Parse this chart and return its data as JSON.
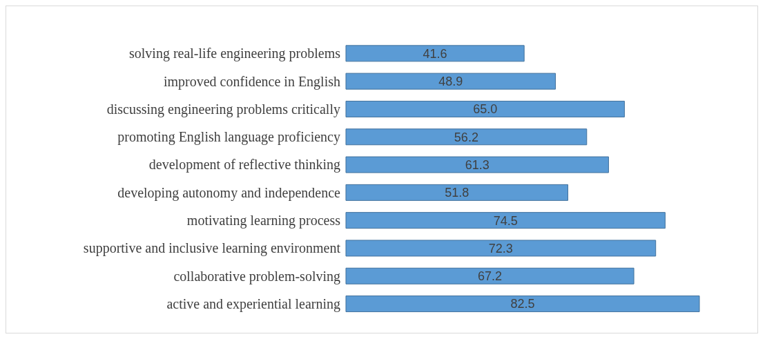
{
  "chart_data": {
    "type": "bar",
    "orientation": "horizontal",
    "data_labels": true,
    "grid": false,
    "legend": false,
    "categories": [
      "solving real-life engineering problems",
      "improved confidence in English",
      "discussing engineering problems critically",
      "promoting English language proficiency",
      "development of reflective thinking",
      "developing autonomy and independence",
      "motivating learning process",
      "supportive and inclusive learning environment",
      "collaborative problem-solving",
      "active and experiential learning"
    ],
    "values": [
      41.6,
      48.9,
      65.0,
      56.2,
      61.3,
      51.8,
      74.5,
      72.3,
      67.2,
      82.5
    ],
    "value_labels": [
      "41.6",
      "48.9",
      "65.0",
      "56.2",
      "61.3",
      "51.8",
      "74.5",
      "72.3",
      "67.2",
      "82.5"
    ],
    "color": "#5b9bd5"
  }
}
